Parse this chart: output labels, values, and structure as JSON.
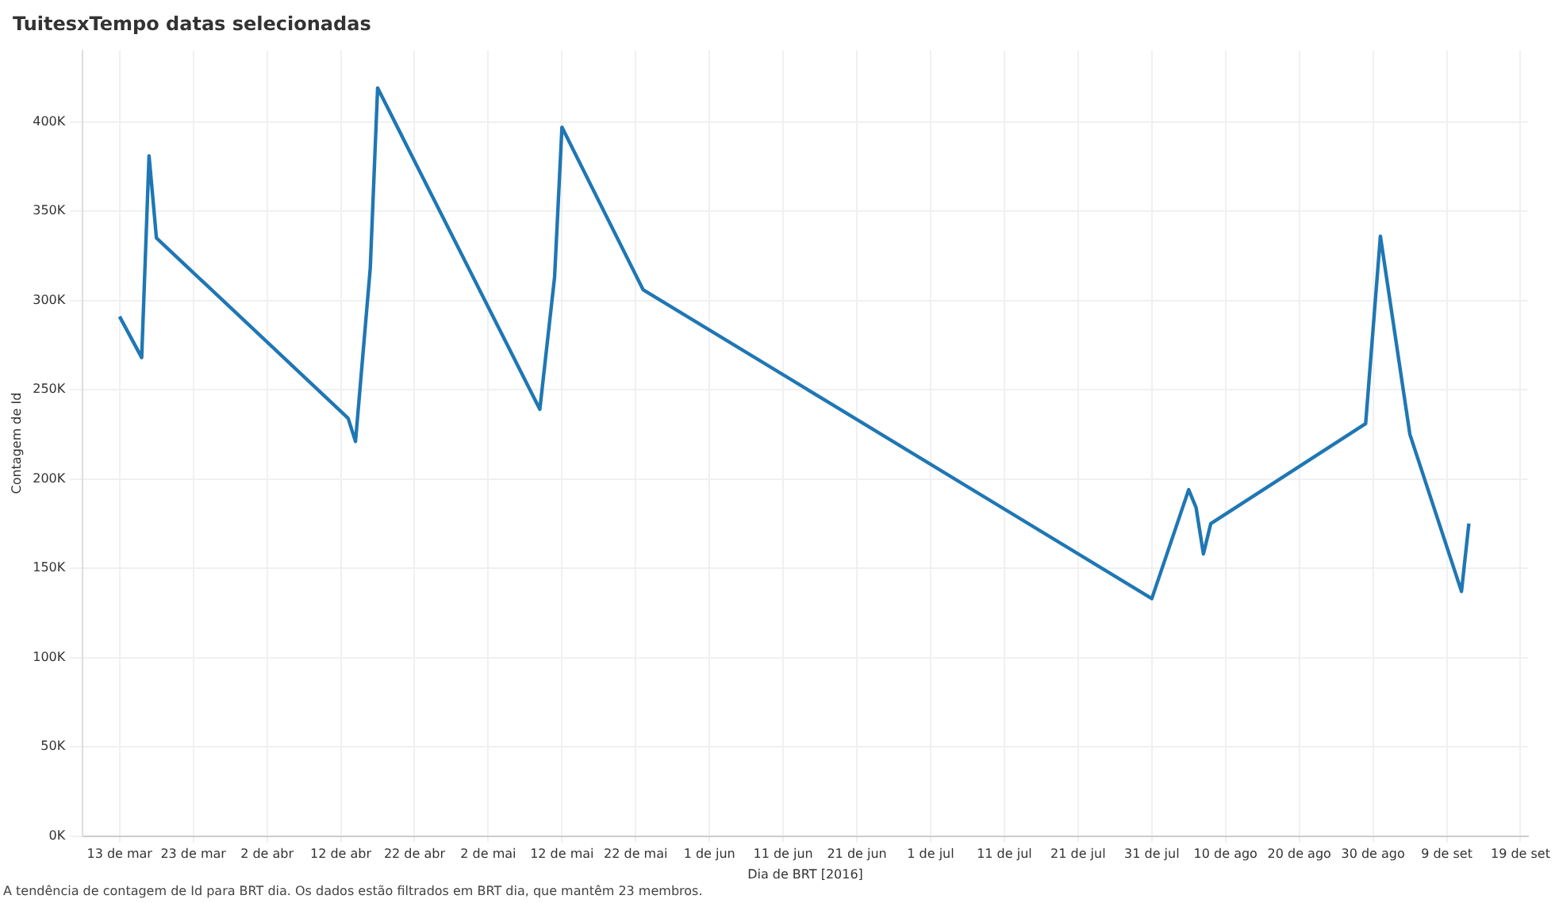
{
  "chart_data": {
    "type": "line",
    "title": "TuitesxTempo datas selecionadas",
    "xlabel": "Dia de BRT [2016]",
    "ylabel": "Contagem de Id",
    "annotations": [
      "A tendência de contagem de Id para BRT dia. Os dados estão filtrados em BRT dia, que mantêm 23 membros."
    ],
    "x": [
      "2016-03-13",
      "2016-03-16",
      "2016-03-17",
      "2016-03-18",
      "2016-04-13",
      "2016-04-14",
      "2016-04-16",
      "2016-04-17",
      "2016-05-09",
      "2016-05-11",
      "2016-05-12",
      "2016-05-23",
      "2016-07-31",
      "2016-08-05",
      "2016-08-06",
      "2016-08-07",
      "2016-08-08",
      "2016-08-29",
      "2016-08-31",
      "2016-09-04",
      "2016-09-11",
      "2016-09-12"
    ],
    "series": [
      {
        "color": "#1f77b4",
        "values": [
          291000,
          268000,
          381000,
          335000,
          234000,
          221000,
          318000,
          419000,
          239000,
          313000,
          397000,
          306000,
          133000,
          194000,
          184000,
          158000,
          175000,
          231000,
          336000,
          225000,
          137000,
          175000
        ]
      }
    ],
    "xlim": [
      "2016-03-08",
      "2016-09-20"
    ],
    "xticks": [
      {
        "value": "2016-03-13",
        "label": "13 de mar"
      },
      {
        "value": "2016-03-23",
        "label": "23 de mar"
      },
      {
        "value": "2016-04-02",
        "label": "2 de abr"
      },
      {
        "value": "2016-04-12",
        "label": "12 de abr"
      },
      {
        "value": "2016-04-22",
        "label": "22 de abr"
      },
      {
        "value": "2016-05-02",
        "label": "2 de mai"
      },
      {
        "value": "2016-05-12",
        "label": "12 de mai"
      },
      {
        "value": "2016-05-22",
        "label": "22 de mai"
      },
      {
        "value": "2016-06-01",
        "label": "1 de jun"
      },
      {
        "value": "2016-06-11",
        "label": "11 de jun"
      },
      {
        "value": "2016-06-21",
        "label": "21 de jun"
      },
      {
        "value": "2016-07-01",
        "label": "1 de jul"
      },
      {
        "value": "2016-07-11",
        "label": "11 de jul"
      },
      {
        "value": "2016-07-21",
        "label": "21 de jul"
      },
      {
        "value": "2016-07-31",
        "label": "31 de jul"
      },
      {
        "value": "2016-08-10",
        "label": "10 de ago"
      },
      {
        "value": "2016-08-20",
        "label": "20 de ago"
      },
      {
        "value": "2016-08-30",
        "label": "30 de ago"
      },
      {
        "value": "2016-09-09",
        "label": "9 de set"
      },
      {
        "value": "2016-09-19",
        "label": "19 de set"
      }
    ],
    "ylim": [
      0,
      440000
    ],
    "yticks": [
      {
        "value": 0,
        "label": "0K"
      },
      {
        "value": 50000,
        "label": "50K"
      },
      {
        "value": 100000,
        "label": "100K"
      },
      {
        "value": 150000,
        "label": "150K"
      },
      {
        "value": 200000,
        "label": "200K"
      },
      {
        "value": 250000,
        "label": "250K"
      },
      {
        "value": 300000,
        "label": "300K"
      },
      {
        "value": 350000,
        "label": "350K"
      },
      {
        "value": 400000,
        "label": "400K"
      }
    ],
    "grid": true,
    "legend": false,
    "marker": "none",
    "line_style": "solid"
  }
}
